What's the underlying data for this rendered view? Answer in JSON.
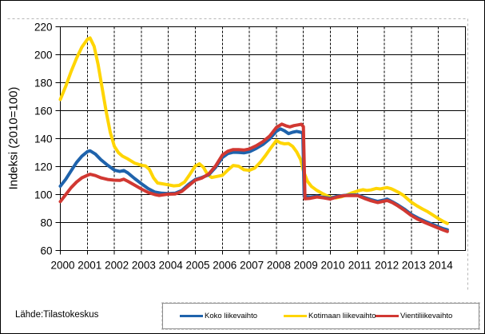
{
  "figure": {
    "source_text": "Lähde:Tilastokeskus"
  },
  "chart_data": {
    "type": "line",
    "title": "",
    "xlabel": "",
    "ylabel": "Indeksi (2010=100)",
    "xlim": [
      2000,
      2015
    ],
    "ylim": [
      60,
      220
    ],
    "x_ticks": [
      2000,
      2001,
      2002,
      2003,
      2004,
      2005,
      2006,
      2007,
      2008,
      2009,
      2010,
      2011,
      2012,
      2013,
      2014
    ],
    "y_ticks": [
      60,
      80,
      100,
      120,
      140,
      160,
      180,
      200,
      220
    ],
    "grid": {
      "horizontal": "solid",
      "vertical": "dashed"
    },
    "legend_position": "bottom",
    "series": [
      {
        "name": "Koko liikevaihto",
        "color": "#1F63AC",
        "points": [
          [
            2000.0,
            106
          ],
          [
            2000.2,
            111
          ],
          [
            2000.4,
            117
          ],
          [
            2000.6,
            123
          ],
          [
            2000.8,
            127.5
          ],
          [
            2001.0,
            130.7
          ],
          [
            2001.1,
            131.3
          ],
          [
            2001.3,
            129
          ],
          [
            2001.5,
            125
          ],
          [
            2001.75,
            121
          ],
          [
            2002.0,
            117.5
          ],
          [
            2002.2,
            116.5
          ],
          [
            2002.35,
            117.2
          ],
          [
            2002.5,
            115.5
          ],
          [
            2002.75,
            111.5
          ],
          [
            2003.0,
            107.8
          ],
          [
            2003.25,
            104.3
          ],
          [
            2003.5,
            101.8
          ],
          [
            2003.75,
            101
          ],
          [
            2004.0,
            100.7
          ],
          [
            2004.25,
            101
          ],
          [
            2004.5,
            103
          ],
          [
            2004.75,
            107.3
          ],
          [
            2005.0,
            110.8
          ],
          [
            2005.25,
            112.3
          ],
          [
            2005.5,
            114.2
          ],
          [
            2005.75,
            119.5
          ],
          [
            2006.0,
            126.5
          ],
          [
            2006.2,
            129.3
          ],
          [
            2006.4,
            130.3
          ],
          [
            2006.6,
            130.2
          ],
          [
            2006.8,
            129.8
          ],
          [
            2007.0,
            130.6
          ],
          [
            2007.25,
            133
          ],
          [
            2007.5,
            135.8
          ],
          [
            2007.75,
            139.8
          ],
          [
            2008.0,
            145.3
          ],
          [
            2008.15,
            147
          ],
          [
            2008.3,
            145.6
          ],
          [
            2008.45,
            143.6
          ],
          [
            2008.6,
            144.6
          ],
          [
            2008.75,
            145.2
          ],
          [
            2008.9,
            144.6
          ],
          [
            2008.98,
            144
          ],
          [
            2009.03,
            98.6
          ],
          [
            2009.25,
            98.2
          ],
          [
            2009.5,
            98.8
          ],
          [
            2009.75,
            98
          ],
          [
            2010.0,
            97.3
          ],
          [
            2010.25,
            98.8
          ],
          [
            2010.5,
            99.4
          ],
          [
            2010.75,
            99.7
          ],
          [
            2011.0,
            99.7
          ],
          [
            2011.25,
            98
          ],
          [
            2011.5,
            96.4
          ],
          [
            2011.75,
            95.1
          ],
          [
            2012.0,
            96.2
          ],
          [
            2012.1,
            96.8
          ],
          [
            2012.3,
            94.8
          ],
          [
            2012.5,
            92.6
          ],
          [
            2012.75,
            89.5
          ],
          [
            2013.0,
            85.8
          ],
          [
            2013.25,
            83.2
          ],
          [
            2013.5,
            81
          ],
          [
            2013.75,
            79
          ],
          [
            2014.0,
            77
          ],
          [
            2014.18,
            75.6
          ],
          [
            2014.33,
            74.8
          ]
        ]
      },
      {
        "name": "Kotimaan liikevaihto",
        "color": "#FFD503",
        "points": [
          [
            2000.0,
            168
          ],
          [
            2000.2,
            177.5
          ],
          [
            2000.4,
            188
          ],
          [
            2000.6,
            197.5
          ],
          [
            2000.8,
            205.5
          ],
          [
            2001.0,
            211
          ],
          [
            2001.1,
            212
          ],
          [
            2001.25,
            206
          ],
          [
            2001.4,
            193
          ],
          [
            2001.55,
            176
          ],
          [
            2001.7,
            159
          ],
          [
            2001.85,
            144.5
          ],
          [
            2002.0,
            134.5
          ],
          [
            2002.15,
            130
          ],
          [
            2002.3,
            127.5
          ],
          [
            2002.5,
            125.5
          ],
          [
            2002.75,
            122.5
          ],
          [
            2003.0,
            121
          ],
          [
            2003.15,
            120.5
          ],
          [
            2003.3,
            118
          ],
          [
            2003.45,
            112
          ],
          [
            2003.6,
            108.3
          ],
          [
            2003.75,
            107.8
          ],
          [
            2004.0,
            107
          ],
          [
            2004.2,
            106.2
          ],
          [
            2004.4,
            106.6
          ],
          [
            2004.6,
            109
          ],
          [
            2004.8,
            114.5
          ],
          [
            2005.0,
            120.5
          ],
          [
            2005.15,
            122
          ],
          [
            2005.3,
            119.5
          ],
          [
            2005.45,
            114.5
          ],
          [
            2005.6,
            112.2
          ],
          [
            2005.8,
            113
          ],
          [
            2006.0,
            113.8
          ],
          [
            2006.2,
            117.5
          ],
          [
            2006.4,
            120.8
          ],
          [
            2006.6,
            120.3
          ],
          [
            2006.8,
            117.8
          ],
          [
            2007.0,
            117.3
          ],
          [
            2007.2,
            119
          ],
          [
            2007.4,
            123
          ],
          [
            2007.6,
            128
          ],
          [
            2007.8,
            133.5
          ],
          [
            2008.0,
            138.7
          ],
          [
            2008.15,
            137
          ],
          [
            2008.3,
            136.3
          ],
          [
            2008.45,
            136.5
          ],
          [
            2008.6,
            134.5
          ],
          [
            2008.75,
            130.5
          ],
          [
            2008.9,
            125
          ],
          [
            2009.0,
            117
          ],
          [
            2009.15,
            109.5
          ],
          [
            2009.3,
            105.8
          ],
          [
            2009.5,
            103
          ],
          [
            2009.7,
            100.8
          ],
          [
            2009.85,
            99.3
          ],
          [
            2010.0,
            98.2
          ],
          [
            2010.2,
            97.6
          ],
          [
            2010.4,
            98.4
          ],
          [
            2010.6,
            99.6
          ],
          [
            2010.8,
            101.2
          ],
          [
            2011.0,
            102.5
          ],
          [
            2011.2,
            103.5
          ],
          [
            2011.35,
            103
          ],
          [
            2011.5,
            103.3
          ],
          [
            2011.7,
            104.4
          ],
          [
            2011.85,
            104
          ],
          [
            2012.0,
            104.7
          ],
          [
            2012.1,
            105
          ],
          [
            2012.25,
            104.2
          ],
          [
            2012.4,
            102.8
          ],
          [
            2012.55,
            101.3
          ],
          [
            2012.7,
            99.5
          ],
          [
            2012.85,
            97
          ],
          [
            2013.0,
            94.5
          ],
          [
            2013.2,
            92
          ],
          [
            2013.4,
            89.8
          ],
          [
            2013.6,
            87.8
          ],
          [
            2013.8,
            85.3
          ],
          [
            2014.0,
            82.8
          ],
          [
            2014.18,
            80.8
          ],
          [
            2014.33,
            79.3
          ]
        ]
      },
      {
        "name": "Vientiliikevaihto",
        "color": "#D13832",
        "points": [
          [
            2000.0,
            95
          ],
          [
            2000.2,
            100
          ],
          [
            2000.4,
            105
          ],
          [
            2000.6,
            109
          ],
          [
            2000.8,
            112
          ],
          [
            2001.0,
            113.8
          ],
          [
            2001.1,
            114.5
          ],
          [
            2001.3,
            113.6
          ],
          [
            2001.5,
            112
          ],
          [
            2001.75,
            110.8
          ],
          [
            2002.0,
            110.3
          ],
          [
            2002.2,
            110.1
          ],
          [
            2002.35,
            111
          ],
          [
            2002.5,
            109.5
          ],
          [
            2002.75,
            106.8
          ],
          [
            2003.0,
            104
          ],
          [
            2003.25,
            101.5
          ],
          [
            2003.5,
            100
          ],
          [
            2003.65,
            99.4
          ],
          [
            2003.8,
            99.8
          ],
          [
            2004.0,
            100.3
          ],
          [
            2004.25,
            100.4
          ],
          [
            2004.5,
            102.3
          ],
          [
            2004.75,
            106.3
          ],
          [
            2005.0,
            110.3
          ],
          [
            2005.25,
            111.9
          ],
          [
            2005.5,
            114.8
          ],
          [
            2005.75,
            120.5
          ],
          [
            2006.0,
            128.3
          ],
          [
            2006.2,
            131
          ],
          [
            2006.4,
            132.2
          ],
          [
            2006.6,
            132.2
          ],
          [
            2006.8,
            131.8
          ],
          [
            2007.0,
            132.6
          ],
          [
            2007.25,
            134.9
          ],
          [
            2007.5,
            137.8
          ],
          [
            2007.75,
            141.8
          ],
          [
            2008.0,
            148
          ],
          [
            2008.2,
            150.4
          ],
          [
            2008.35,
            149.2
          ],
          [
            2008.5,
            148.4
          ],
          [
            2008.65,
            149.3
          ],
          [
            2008.8,
            149.8
          ],
          [
            2008.93,
            150.3
          ],
          [
            2009.0,
            148.5
          ],
          [
            2009.06,
            97
          ],
          [
            2009.25,
            97.3
          ],
          [
            2009.5,
            98.3
          ],
          [
            2009.75,
            97.6
          ],
          [
            2010.0,
            96.8
          ],
          [
            2010.25,
            98.3
          ],
          [
            2010.5,
            99.2
          ],
          [
            2010.75,
            99.4
          ],
          [
            2011.0,
            99.3
          ],
          [
            2011.25,
            97.3
          ],
          [
            2011.5,
            95.6
          ],
          [
            2011.75,
            94.3
          ],
          [
            2012.0,
            95.3
          ],
          [
            2012.1,
            95.8
          ],
          [
            2012.3,
            94.2
          ],
          [
            2012.5,
            91.9
          ],
          [
            2012.75,
            88.6
          ],
          [
            2013.0,
            85
          ],
          [
            2013.25,
            82.2
          ],
          [
            2013.5,
            80
          ],
          [
            2013.75,
            78
          ],
          [
            2014.0,
            76
          ],
          [
            2014.18,
            74.6
          ],
          [
            2014.33,
            73.6
          ]
        ]
      }
    ]
  }
}
